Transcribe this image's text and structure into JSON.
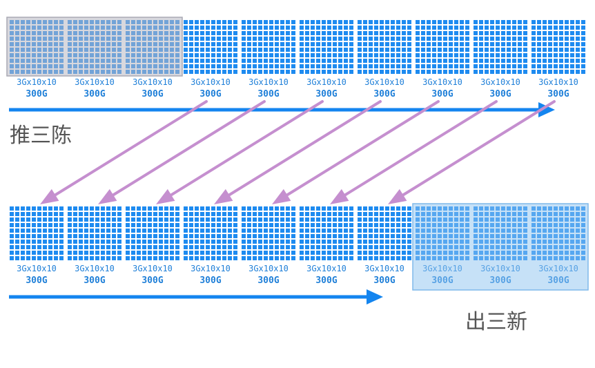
{
  "colors": {
    "cell": "#1e8bf0",
    "block_bg": "#ffffff",
    "old_overlay": "#b8b8c2",
    "new_overlay": "#8ec4f0",
    "flow_arrow": "#1485ef",
    "move_arrow": "#c58fcf",
    "caption": "#555555"
  },
  "top_row": {
    "blocks": [
      {
        "capacity": "3Gx10x10",
        "size": "300G",
        "state": "retiring"
      },
      {
        "capacity": "3Gx10x10",
        "size": "300G",
        "state": "retiring"
      },
      {
        "capacity": "3Gx10x10",
        "size": "300G",
        "state": "retiring"
      },
      {
        "capacity": "3Gx10x10",
        "size": "300G",
        "state": "normal"
      },
      {
        "capacity": "3Gx10x10",
        "size": "300G",
        "state": "normal"
      },
      {
        "capacity": "3Gx10x10",
        "size": "300G",
        "state": "normal"
      },
      {
        "capacity": "3Gx10x10",
        "size": "300G",
        "state": "normal"
      },
      {
        "capacity": "3Gx10x10",
        "size": "300G",
        "state": "normal"
      },
      {
        "capacity": "3Gx10x10",
        "size": "300G",
        "state": "normal"
      },
      {
        "capacity": "3Gx10x10",
        "size": "300G",
        "state": "normal"
      }
    ]
  },
  "bottom_row": {
    "blocks": [
      {
        "capacity": "3Gx10x10",
        "size": "300G",
        "state": "normal"
      },
      {
        "capacity": "3Gx10x10",
        "size": "300G",
        "state": "normal"
      },
      {
        "capacity": "3Gx10x10",
        "size": "300G",
        "state": "normal"
      },
      {
        "capacity": "3Gx10x10",
        "size": "300G",
        "state": "normal"
      },
      {
        "capacity": "3Gx10x10",
        "size": "300G",
        "state": "normal"
      },
      {
        "capacity": "3Gx10x10",
        "size": "300G",
        "state": "normal"
      },
      {
        "capacity": "3Gx10x10",
        "size": "300G",
        "state": "normal"
      },
      {
        "capacity": "3Gx10x10",
        "size": "300G",
        "state": "new"
      },
      {
        "capacity": "3Gx10x10",
        "size": "300G",
        "state": "new"
      },
      {
        "capacity": "3Gx10x10",
        "size": "300G",
        "state": "new"
      }
    ]
  },
  "captions": {
    "push_old": "推三陈",
    "bring_new": "出三新"
  },
  "moves": [
    {
      "from": 3,
      "to": 0
    },
    {
      "from": 4,
      "to": 1
    },
    {
      "from": 5,
      "to": 2
    },
    {
      "from": 6,
      "to": 3
    },
    {
      "from": 7,
      "to": 4
    },
    {
      "from": 8,
      "to": 5
    },
    {
      "from": 9,
      "to": 6
    }
  ]
}
